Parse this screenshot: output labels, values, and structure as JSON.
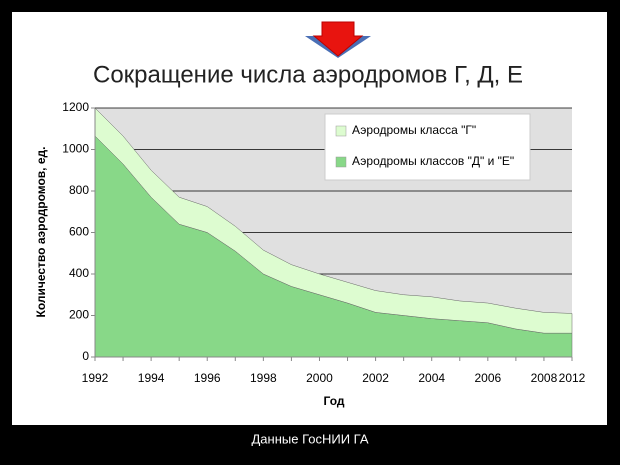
{
  "chart_data": {
    "type": "stacked-area",
    "title": "Сокращение числа аэродромов Г, Д, Е",
    "source": "Данные  ГосНИИ ГА",
    "x_label": "Год",
    "y_label": "Количество аэродромов, ед.",
    "categories": [
      "1992",
      null,
      "1994",
      null,
      "1996",
      null,
      "1998",
      null,
      "2000",
      null,
      "2002",
      null,
      "2004",
      null,
      "2006",
      null,
      "2008",
      "2012"
    ],
    "series": [
      {
        "name": "Аэродромы классов \"Д\" и \"Е\"",
        "color": "#88d888",
        "values": [
          1065,
          930,
          770,
          640,
          600,
          510,
          400,
          340,
          300,
          260,
          215,
          200,
          185,
          175,
          165,
          135,
          115,
          115
        ]
      },
      {
        "name": "Аэродромы класса \"Г\"",
        "color": "#ddfcd0",
        "values": [
          135,
          135,
          130,
          130,
          125,
          120,
          115,
          105,
          100,
          100,
          105,
          100,
          105,
          95,
          95,
          100,
          100,
          95
        ]
      }
    ],
    "ylim": [
      0,
      1200
    ],
    "yticks": [
      0,
      200,
      400,
      600,
      800,
      1000,
      1200
    ],
    "grid": true
  }
}
